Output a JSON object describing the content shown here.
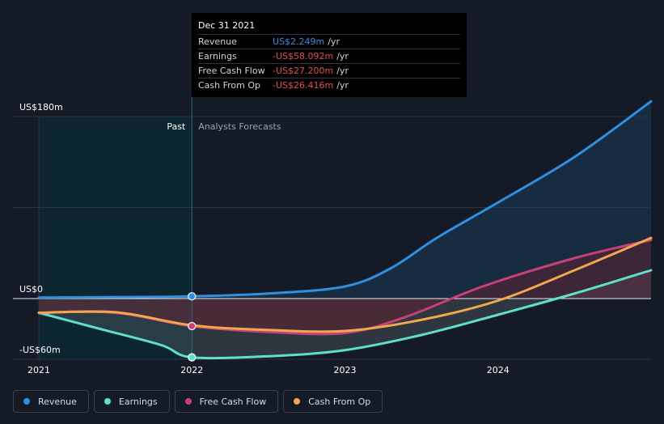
{
  "chart_data": {
    "type": "line",
    "x_ticks": [
      "2021",
      "2022",
      "2023",
      "2024"
    ],
    "y_ticks": [
      {
        "label": "US$180m",
        "value": 180
      },
      {
        "label": "US$0",
        "value": 0
      },
      {
        "label": "-US$60m",
        "value": -60
      }
    ],
    "ylim": [
      -60,
      180
    ],
    "xlim": [
      2021.0,
      2025.0
    ],
    "divider_x": 2022.0,
    "past_label": "Past",
    "forecast_label": "Analysts Forecasts",
    "series": [
      {
        "name": "Revenue",
        "color": "#2f8fe0",
        "x": [
          2021.0,
          2021.5,
          2022.0,
          2022.5,
          2023.0,
          2023.3,
          2023.6,
          2024.0,
          2024.5,
          2025.0
        ],
        "values": [
          1.0,
          1.5,
          2.249,
          5.0,
          12.0,
          30.0,
          60.0,
          95.0,
          140.0,
          195.0
        ]
      },
      {
        "name": "Earnings",
        "color": "#5ee0c8",
        "x": [
          2021.0,
          2021.4,
          2021.8,
          2022.0,
          2022.5,
          2023.0,
          2023.5,
          2024.0,
          2024.5,
          2025.0
        ],
        "values": [
          -14.0,
          -30.0,
          -46.0,
          -58.092,
          -57.0,
          -51.0,
          -36.0,
          -16.0,
          5.0,
          28.0
        ]
      },
      {
        "name": "Free Cash Flow",
        "color": "#c8407a",
        "x": [
          2021.0,
          2021.5,
          2022.0,
          2022.5,
          2023.0,
          2023.4,
          2023.9,
          2024.5,
          2025.0
        ],
        "values": [
          -14.0,
          -14.0,
          -27.2,
          -33.0,
          -34.0,
          -18.0,
          12.0,
          40.0,
          58.0
        ]
      },
      {
        "name": "Cash From Op",
        "color": "#f0a84c",
        "x": [
          2021.0,
          2021.5,
          2022.0,
          2022.5,
          2023.0,
          2023.5,
          2024.0,
          2024.5,
          2025.0
        ],
        "values": [
          -14.0,
          -13.5,
          -26.416,
          -31.0,
          -32.0,
          -21.0,
          -2.0,
          28.0,
          60.0
        ]
      }
    ]
  },
  "tooltip": {
    "date": "Dec 31 2021",
    "rows": [
      {
        "label": "Revenue",
        "value": "US$2.249m",
        "unit": "/yr",
        "color": "#2f8fe0"
      },
      {
        "label": "Earnings",
        "value": "-US$58.092m",
        "unit": "/yr",
        "color": "#e84a50"
      },
      {
        "label": "Free Cash Flow",
        "value": "-US$27.200m",
        "unit": "/yr",
        "color": "#e84a50"
      },
      {
        "label": "Cash From Op",
        "value": "-US$26.416m",
        "unit": "/yr",
        "color": "#e84a50"
      }
    ]
  },
  "legend": [
    {
      "label": "Revenue",
      "color": "#2f8fe0"
    },
    {
      "label": "Earnings",
      "color": "#5ee0c8"
    },
    {
      "label": "Free Cash Flow",
      "color": "#c8407a"
    },
    {
      "label": "Cash From Op",
      "color": "#f0a84c"
    }
  ],
  "colors": {
    "background": "#151b26",
    "past_region": "#0b2631",
    "zero_line": "#e8ecf0",
    "gridline": "#2f3540"
  }
}
